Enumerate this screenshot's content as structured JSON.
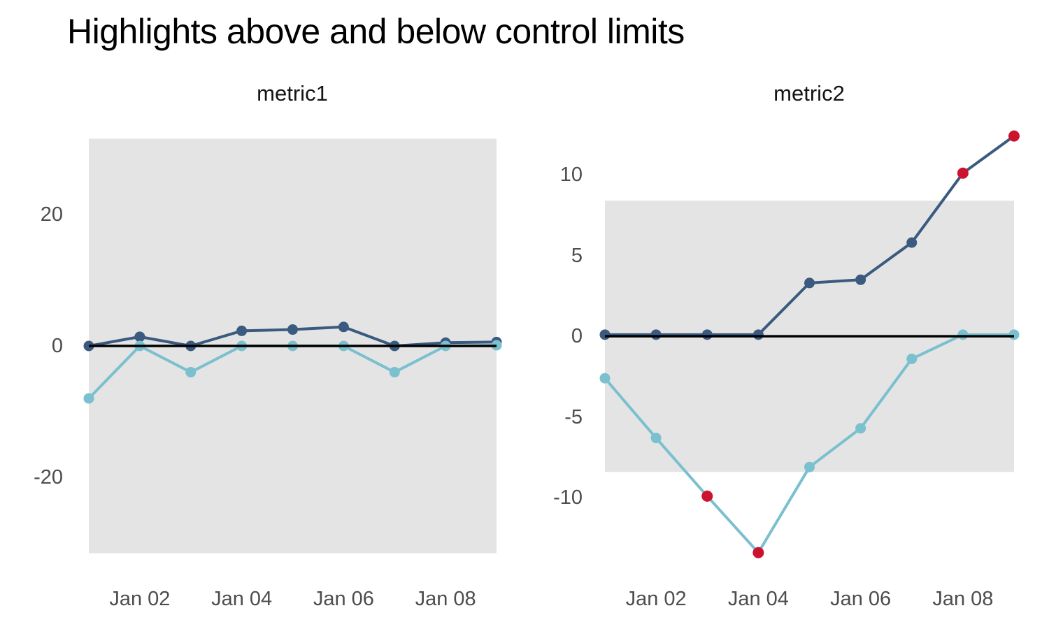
{
  "title": "Highlights above and below control limits",
  "colors": {
    "navy_series": "#3b5a80",
    "teal_series": "#7ac0cf",
    "highlight_red": "#cd1230",
    "control_band": "#e4e4e4",
    "center_line": "#000000",
    "axis_text": "#4d4d4d",
    "facet_text": "#141414"
  },
  "chart_data": [
    {
      "type": "line",
      "facet_label": "metric1",
      "x": [
        "Jan 01",
        "Jan 02",
        "Jan 03",
        "Jan 04",
        "Jan 05",
        "Jan 06",
        "Jan 07",
        "Jan 08",
        "Jan 09"
      ],
      "x_tick_labels": [
        "Jan 02",
        "Jan 04",
        "Jan 06",
        "Jan 08"
      ],
      "x_tick_indices": [
        1,
        3,
        5,
        7
      ],
      "series": [
        {
          "name": "metric1-upper-series",
          "color": "#3b5a80",
          "values": [
            0,
            1.4,
            0,
            2.3,
            2.5,
            2.9,
            0,
            0.5,
            0.6
          ],
          "flagged_indices": []
        },
        {
          "name": "metric1-lower-series",
          "color": "#7ac0cf",
          "values": [
            -8,
            0,
            -4,
            0,
            0,
            0,
            -4,
            0,
            0.1
          ],
          "flagged_indices": []
        }
      ],
      "center_line": 0,
      "control_limits": {
        "upper": 31.6,
        "lower": -31.6
      },
      "y_ticks": [
        {
          "label": "20",
          "value": 20
        },
        {
          "label": "0",
          "value": 0
        },
        {
          "label": "-20",
          "value": -20
        }
      ],
      "ylim": [
        -32.5,
        32.5
      ],
      "grid": false,
      "legend": "none"
    },
    {
      "type": "line",
      "facet_label": "metric2",
      "x": [
        "Jan 01",
        "Jan 02",
        "Jan 03",
        "Jan 04",
        "Jan 05",
        "Jan 06",
        "Jan 07",
        "Jan 08",
        "Jan 09"
      ],
      "x_tick_labels": [
        "Jan 02",
        "Jan 04",
        "Jan 06",
        "Jan 08"
      ],
      "x_tick_indices": [
        1,
        3,
        5,
        7
      ],
      "series": [
        {
          "name": "metric2-upper-series",
          "color": "#3b5a80",
          "values": [
            0.1,
            0.1,
            0.1,
            0.1,
            3.3,
            3.5,
            5.8,
            10.1,
            12.4
          ],
          "flagged_indices": [
            7,
            8
          ]
        },
        {
          "name": "metric2-lower-series",
          "color": "#7ac0cf",
          "values": [
            -2.6,
            -6.3,
            -9.9,
            -13.4,
            -8.1,
            -5.7,
            -1.4,
            0.1,
            0.1
          ],
          "flagged_indices": [
            2,
            3
          ]
        }
      ],
      "center_line": 0,
      "control_limits": {
        "upper": 8.4,
        "lower": -8.4
      },
      "y_ticks": [
        {
          "label": "10",
          "value": 10
        },
        {
          "label": "5",
          "value": 5
        },
        {
          "label": "0",
          "value": 0
        },
        {
          "label": "-5",
          "value": -5
        },
        {
          "label": "-10",
          "value": -10
        }
      ],
      "ylim": [
        -13.8,
        12.6
      ],
      "grid": false,
      "legend": "none"
    }
  ]
}
